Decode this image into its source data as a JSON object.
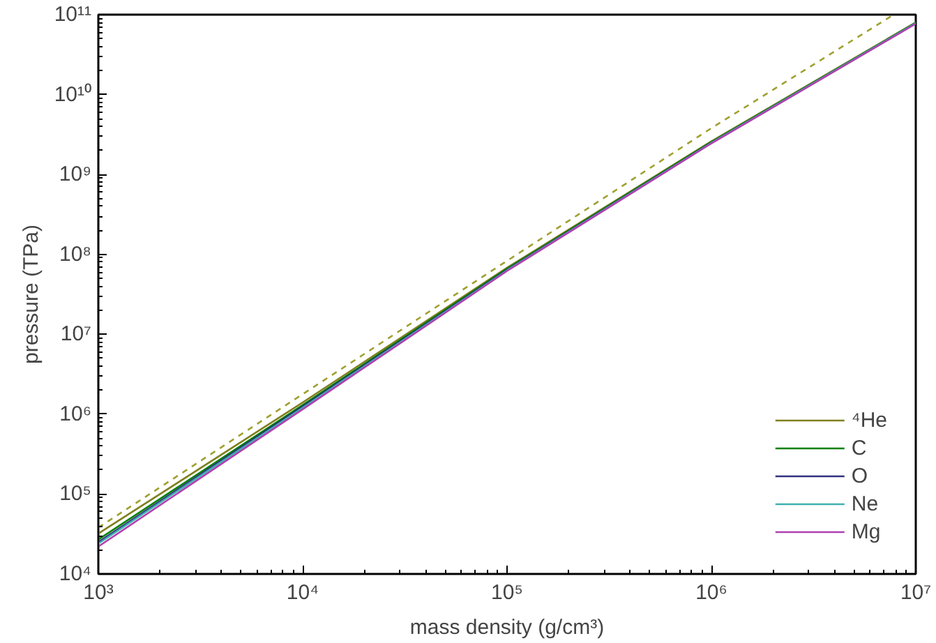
{
  "chart_data": {
    "type": "line",
    "xlabel": "mass density (g/cm³)",
    "ylabel": "pressure (TPa)",
    "log": "xy",
    "grid": false,
    "legend": "bottom right",
    "xlim": [
      1000,
      10000000
    ],
    "ylim": [
      10000,
      100000000000
    ],
    "xticks": [
      {
        "value": 1000,
        "label": "10³"
      },
      {
        "value": 10000,
        "label": "10⁴"
      },
      {
        "value": 100000,
        "label": "10⁵"
      },
      {
        "value": 1000000,
        "label": "10⁶"
      },
      {
        "value": 10000000,
        "label": "10⁷"
      }
    ],
    "yticks": [
      {
        "value": 10000,
        "label": "10⁴"
      },
      {
        "value": 100000,
        "label": "10⁵"
      },
      {
        "value": 1000000,
        "label": "10⁶"
      },
      {
        "value": 10000000,
        "label": "10⁷"
      },
      {
        "value": 100000000,
        "label": "10⁸"
      },
      {
        "value": 1000000000,
        "label": "10⁹"
      },
      {
        "value": 10000000000,
        "label": "10¹⁰"
      },
      {
        "value": 100000000000,
        "label": "10¹¹"
      }
    ],
    "x": [
      1000,
      10000,
      100000,
      1000000,
      10000000
    ],
    "series": [
      {
        "name": "⁴He",
        "color": "#808020",
        "values": [
          32000,
          1400000,
          68000000,
          2600000000,
          80000000000
        ]
      },
      {
        "name": "C",
        "color": "#008000",
        "values": [
          27000,
          1300000,
          66000000,
          2550000000,
          79000000000
        ]
      },
      {
        "name": "O",
        "color": "#303080",
        "values": [
          25000,
          1250000,
          64000000,
          2500000000,
          78000000000
        ]
      },
      {
        "name": "Ne",
        "color": "#40b0b0",
        "values": [
          24000,
          1200000,
          63000000,
          2480000000,
          78000000000
        ]
      },
      {
        "name": "Mg",
        "color": "#b040b0",
        "values": [
          22000,
          1150000,
          62000000,
          2450000000,
          77000000000
        ]
      },
      {
        "color": "#a0a030",
        "line_style": "dashed",
        "x": [
          1000,
          10000,
          100000,
          1000000,
          7800000
        ],
        "values": [
          38000,
          1780000,
          83000000,
          3800000000,
          100000000000
        ]
      }
    ]
  }
}
